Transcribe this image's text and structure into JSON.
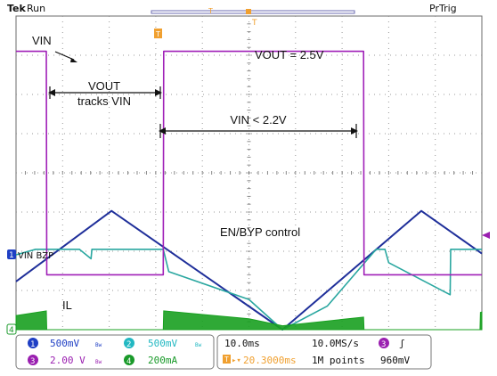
{
  "header": {
    "brand": "Tek",
    "status": "Run",
    "trigger_mode": "PrTrig",
    "trigger_marker": "T"
  },
  "channels": [
    {
      "id": "1",
      "scale": "500mV",
      "color": "#1f3fc4",
      "trace_color": "#1f2f9a"
    },
    {
      "id": "2",
      "scale": "500mV",
      "color": "#22b8c2",
      "trace_color": "#2aa7a0"
    },
    {
      "id": "3",
      "scale": "2.00 V",
      "color": "#9a1fb0",
      "trace_color": "#a020b8"
    },
    {
      "id": "4",
      "scale": "200mA",
      "color": "#1a9a2a",
      "trace_color": "#18a020"
    }
  ],
  "bandwidth_mark": "Bw",
  "timebase": {
    "time_div": "10.0ms",
    "sample_rate": "10.0MS/s",
    "trigger_position": "20.3000ms",
    "record_length": "1M points"
  },
  "trigger": {
    "source_channel": "3",
    "slope_symbol": "ʃ",
    "level": "960mV"
  },
  "trace_labels": {
    "vin_bzp": "VIN BZP",
    "il": "IL",
    "ch4_marker": "4",
    "ch1_marker": "1"
  },
  "annotations": {
    "vin": "VIN",
    "vout_eq": "VOUT = 2.5V",
    "vout_tracks_1": "VOUT",
    "vout_tracks_2": "tracks VIN",
    "vin_lt": "VIN < 2.2V",
    "en_byp": "EN/BYP control"
  },
  "chart_data": {
    "type": "line",
    "title": "",
    "xlabel": "",
    "ylabel": "",
    "x_unit": "ms",
    "x_range": [
      0,
      100
    ],
    "divisions": {
      "x": 10,
      "y": 8
    },
    "series": [
      {
        "name": "VIN",
        "channel": "1",
        "x": [
          0,
          20.5,
          57.2,
          87.0,
          100
        ],
        "y": [
          1.23,
          3.03,
          0.0,
          3.03,
          1.94
        ]
      },
      {
        "name": "VOUT",
        "channel": "2",
        "x": [
          0,
          4.2,
          13.6,
          16.1,
          16.3,
          31.6,
          32.8,
          50.0,
          57.2,
          66.8,
          77.3,
          79.2,
          80.0,
          93.2,
          93.3,
          100
        ],
        "y": [
          1.91,
          2.05,
          2.05,
          1.81,
          2.05,
          2.05,
          1.48,
          0.77,
          0.0,
          0.6,
          2.05,
          2.05,
          1.71,
          0.89,
          2.05,
          2.05
        ]
      },
      {
        "name": "EN/BYP",
        "channel": "3",
        "x": [
          0,
          6.5,
          6.6,
          31.6,
          31.7,
          74.6,
          74.7,
          100
        ],
        "y": [
          7.1,
          7.1,
          1.4,
          1.4,
          7.1,
          7.1,
          1.4,
          1.4
        ]
      },
      {
        "name": "IL",
        "channel": "4",
        "x": [
          0,
          6.5,
          6.6,
          31.6,
          31.7,
          50.0,
          57.2,
          74.6,
          74.7,
          99.6,
          99.7,
          100
        ],
        "y": [
          0.36,
          0.48,
          0.0,
          0.0,
          0.48,
          0.28,
          0.1,
          0.32,
          0.0,
          0.0,
          0.44,
          0.45
        ]
      }
    ]
  }
}
